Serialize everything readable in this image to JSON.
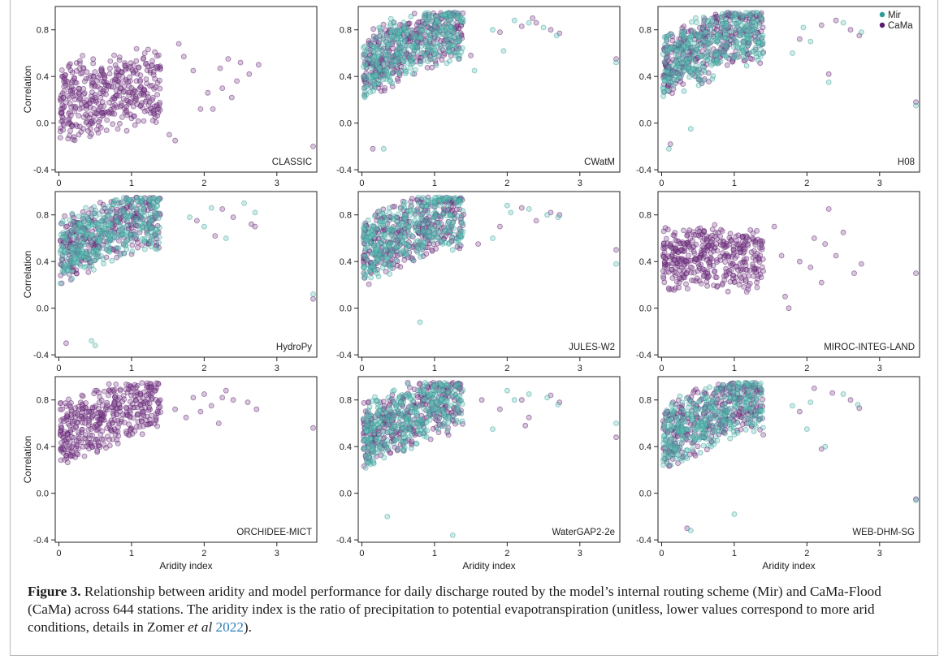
{
  "colors": {
    "mir": "#2a9d95",
    "cama": "#5b1a6a",
    "mir_fill": "#6fc3bb",
    "cama_fill": "#8c5a9b"
  },
  "legend": {
    "items": [
      "Mir",
      "CaMa"
    ]
  },
  "axes": {
    "xlabel": "Aridity index",
    "ylabel": "Correlation",
    "xlim": [
      -0.05,
      3.55
    ],
    "ylim": [
      -0.42,
      1.0
    ],
    "xticks": [
      "0",
      "1",
      "2",
      "3"
    ],
    "yticks": [
      "-0.4",
      "0.0",
      "0.4",
      "0.8"
    ]
  },
  "caption": {
    "label": "Figure 3.",
    "text_before_ref": " Relationship between aridity and model performance for daily discharge routed by the model’s internal routing scheme (Mir) and CaMa-Flood (CaMa) across 644 stations. The aridity index is the ratio of precipitation to potential evapotranspiration (unitless, lower values correspond to more arid conditions, details in Zomer ",
    "etal": "et al",
    "ref_year": "2022",
    "text_after_ref": ")."
  },
  "chart_data": [
    {
      "type": "scatter",
      "title": "CLASSIC",
      "series_present": [
        "CaMa"
      ],
      "outliers": {
        "CaMa": [
          [
            1.65,
            0.68
          ],
          [
            1.72,
            0.57
          ],
          [
            1.6,
            -0.15
          ],
          [
            1.52,
            -0.1
          ],
          [
            1.85,
            0.45
          ],
          [
            2.05,
            0.26
          ],
          [
            2.12,
            0.12
          ],
          [
            2.22,
            0.47
          ],
          [
            2.33,
            0.55
          ],
          [
            2.38,
            0.22
          ],
          [
            2.45,
            0.36
          ],
          [
            2.5,
            0.52
          ],
          [
            2.62,
            0.42
          ],
          [
            2.75,
            0.5
          ],
          [
            3.5,
            -0.2
          ],
          [
            1.95,
            0.12
          ],
          [
            2.25,
            0.3
          ]
        ]
      }
    },
    {
      "type": "scatter",
      "title": "CWatM",
      "series_present": [
        "Mir",
        "CaMa"
      ],
      "outliers": {
        "Mir": [
          [
            1.8,
            0.8
          ],
          [
            2.3,
            0.86
          ],
          [
            2.5,
            0.82
          ],
          [
            2.68,
            0.75
          ],
          [
            3.5,
            0.52
          ],
          [
            1.95,
            0.62
          ],
          [
            2.1,
            0.88
          ],
          [
            1.55,
            0.45
          ],
          [
            0.3,
            -0.22
          ]
        ],
        "CaMa": [
          [
            1.9,
            0.78
          ],
          [
            2.2,
            0.83
          ],
          [
            2.4,
            0.86
          ],
          [
            2.6,
            0.8
          ],
          [
            2.72,
            0.77
          ],
          [
            3.5,
            0.55
          ],
          [
            2.35,
            0.9
          ],
          [
            1.5,
            0.58
          ],
          [
            0.15,
            -0.22
          ]
        ]
      }
    },
    {
      "type": "scatter",
      "title": "H08",
      "series_present": [
        "Mir",
        "CaMa"
      ],
      "outliers": {
        "Mir": [
          [
            1.8,
            0.6
          ],
          [
            2.05,
            0.7
          ],
          [
            2.3,
            0.35
          ],
          [
            2.5,
            0.86
          ],
          [
            2.75,
            0.78
          ],
          [
            3.5,
            0.15
          ],
          [
            1.95,
            0.82
          ],
          [
            0.1,
            -0.22
          ],
          [
            0.4,
            -0.05
          ]
        ],
        "CaMa": [
          [
            1.9,
            0.72
          ],
          [
            2.2,
            0.84
          ],
          [
            2.3,
            0.42
          ],
          [
            2.6,
            0.8
          ],
          [
            2.72,
            0.75
          ],
          [
            3.5,
            0.18
          ],
          [
            2.4,
            0.88
          ],
          [
            0.12,
            -0.18
          ]
        ]
      }
    },
    {
      "type": "scatter",
      "title": "HydroPy",
      "series_present": [
        "Mir",
        "CaMa"
      ],
      "outliers": {
        "Mir": [
          [
            1.8,
            0.78
          ],
          [
            2.1,
            0.86
          ],
          [
            2.3,
            0.6
          ],
          [
            2.55,
            0.9
          ],
          [
            2.7,
            0.82
          ],
          [
            3.5,
            0.12
          ],
          [
            2.0,
            0.7
          ],
          [
            0.5,
            -0.32
          ],
          [
            0.45,
            -0.28
          ]
        ],
        "CaMa": [
          [
            1.9,
            0.75
          ],
          [
            2.25,
            0.85
          ],
          [
            2.4,
            0.78
          ],
          [
            2.65,
            0.72
          ],
          [
            2.7,
            0.7
          ],
          [
            3.5,
            0.08
          ],
          [
            2.15,
            0.62
          ],
          [
            0.1,
            -0.3
          ]
        ]
      }
    },
    {
      "type": "scatter",
      "title": "JULES-W2",
      "series_present": [
        "Mir",
        "CaMa"
      ],
      "outliers": {
        "Mir": [
          [
            1.8,
            0.6
          ],
          [
            2.05,
            0.82
          ],
          [
            2.3,
            0.85
          ],
          [
            2.55,
            0.8
          ],
          [
            2.7,
            0.78
          ],
          [
            3.5,
            0.38
          ],
          [
            2.0,
            0.88
          ],
          [
            0.8,
            -0.12
          ]
        ],
        "CaMa": [
          [
            1.9,
            0.7
          ],
          [
            2.2,
            0.86
          ],
          [
            2.4,
            0.75
          ],
          [
            2.6,
            0.82
          ],
          [
            2.72,
            0.8
          ],
          [
            3.5,
            0.5
          ],
          [
            1.6,
            0.55
          ]
        ]
      }
    },
    {
      "type": "scatter",
      "title": "MIROC-INTEG-LAND",
      "series_present": [
        "CaMa"
      ],
      "outliers": {
        "CaMa": [
          [
            1.65,
            0.45
          ],
          [
            1.7,
            0.1
          ],
          [
            1.75,
            0.0
          ],
          [
            1.9,
            0.4
          ],
          [
            2.05,
            0.35
          ],
          [
            2.2,
            0.22
          ],
          [
            2.25,
            0.55
          ],
          [
            2.3,
            0.85
          ],
          [
            2.4,
            0.45
          ],
          [
            2.5,
            0.65
          ],
          [
            2.65,
            0.3
          ],
          [
            2.75,
            0.38
          ],
          [
            3.5,
            0.3
          ],
          [
            1.55,
            0.7
          ],
          [
            2.1,
            0.6
          ]
        ]
      }
    },
    {
      "type": "scatter",
      "title": "ORCHIDEE-MICT",
      "series_present": [
        "CaMa"
      ],
      "outliers": {
        "CaMa": [
          [
            1.6,
            0.72
          ],
          [
            1.75,
            0.65
          ],
          [
            1.85,
            0.82
          ],
          [
            2.0,
            0.85
          ],
          [
            2.1,
            0.75
          ],
          [
            2.2,
            0.6
          ],
          [
            2.3,
            0.88
          ],
          [
            2.4,
            0.8
          ],
          [
            2.6,
            0.78
          ],
          [
            2.72,
            0.72
          ],
          [
            3.5,
            0.56
          ],
          [
            1.95,
            0.7
          ],
          [
            2.25,
            0.82
          ]
        ]
      }
    },
    {
      "type": "scatter",
      "title": "WaterGAP2-2e",
      "series_present": [
        "Mir",
        "CaMa"
      ],
      "outliers": {
        "Mir": [
          [
            1.8,
            0.55
          ],
          [
            2.1,
            0.8
          ],
          [
            2.3,
            0.85
          ],
          [
            2.55,
            0.82
          ],
          [
            2.7,
            0.76
          ],
          [
            3.5,
            0.6
          ],
          [
            1.25,
            -0.36
          ],
          [
            0.35,
            -0.2
          ],
          [
            2.0,
            0.88
          ]
        ],
        "CaMa": [
          [
            1.9,
            0.72
          ],
          [
            2.2,
            0.8
          ],
          [
            2.3,
            0.65
          ],
          [
            2.6,
            0.84
          ],
          [
            2.72,
            0.78
          ],
          [
            3.5,
            0.48
          ],
          [
            1.65,
            0.8
          ],
          [
            2.25,
            0.58
          ]
        ]
      }
    },
    {
      "type": "scatter",
      "title": "WEB-DHM-SG",
      "series_present": [
        "Mir",
        "CaMa"
      ],
      "outliers": {
        "Mir": [
          [
            1.8,
            0.75
          ],
          [
            2.05,
            0.78
          ],
          [
            2.25,
            0.4
          ],
          [
            2.5,
            0.85
          ],
          [
            2.7,
            0.76
          ],
          [
            3.5,
            -0.06
          ],
          [
            2.0,
            0.55
          ],
          [
            0.4,
            -0.32
          ],
          [
            1.0,
            -0.18
          ]
        ],
        "CaMa": [
          [
            1.9,
            0.7
          ],
          [
            2.2,
            0.38
          ],
          [
            2.35,
            0.86
          ],
          [
            2.6,
            0.8
          ],
          [
            2.72,
            0.73
          ],
          [
            3.5,
            -0.05
          ],
          [
            2.1,
            0.9
          ],
          [
            0.35,
            -0.3
          ]
        ]
      }
    }
  ]
}
